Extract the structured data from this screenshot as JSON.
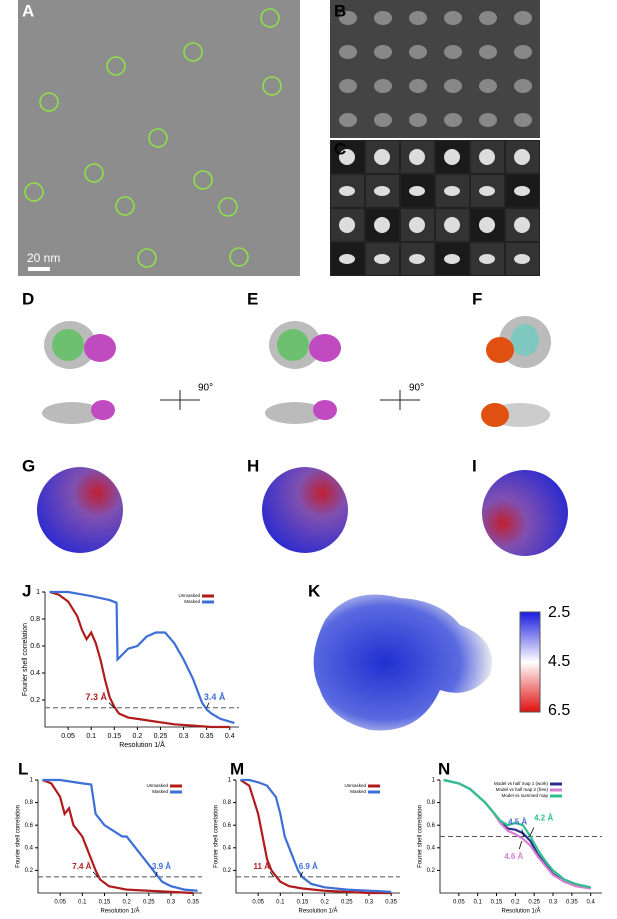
{
  "panel_labels": [
    "A",
    "B",
    "C",
    "D",
    "E",
    "F",
    "G",
    "H",
    "I",
    "J",
    "K",
    "L",
    "M",
    "N"
  ],
  "scale_bar": "20 nm",
  "rotation_labels": [
    "90°",
    "90°"
  ],
  "colorbar_labels": [
    "2.5",
    "4.5",
    "6.5"
  ],
  "chart_data": [
    {
      "type": "line",
      "xlabel": "Resolution 1/Å",
      "ylabel": "Fourier shell correlation",
      "xlim": [
        0,
        0.42
      ],
      "ylim": [
        0,
        1
      ],
      "xticks": [
        0.05,
        0.1,
        0.15,
        0.2,
        0.25,
        0.3,
        0.35,
        0.4
      ],
      "yticks": [
        0.2,
        0.4,
        0.6,
        0.8,
        1
      ],
      "threshold": 0.143,
      "series": [
        {
          "name": "Unmasked",
          "color": "#b01c1c",
          "x": [
            0.01,
            0.03,
            0.05,
            0.07,
            0.08,
            0.09,
            0.1,
            0.11,
            0.12,
            0.13,
            0.14,
            0.15,
            0.16,
            0.18,
            0.2,
            0.24,
            0.28,
            0.32,
            0.36,
            0.4
          ],
          "values": [
            1,
            0.98,
            0.93,
            0.82,
            0.72,
            0.65,
            0.7,
            0.62,
            0.5,
            0.35,
            0.22,
            0.15,
            0.1,
            0.07,
            0.06,
            0.04,
            0.02,
            0.01,
            0,
            0
          ]
        },
        {
          "name": "Masked",
          "color": "#3d6fd6",
          "x": [
            0.01,
            0.05,
            0.1,
            0.14,
            0.155,
            0.157,
            0.18,
            0.2,
            0.22,
            0.24,
            0.26,
            0.28,
            0.3,
            0.32,
            0.34,
            0.35,
            0.36,
            0.38,
            0.41
          ],
          "values": [
            1,
            1,
            0.97,
            0.94,
            0.92,
            0.5,
            0.58,
            0.6,
            0.67,
            0.7,
            0.7,
            0.62,
            0.5,
            0.36,
            0.18,
            0.13,
            0.1,
            0.06,
            0.03
          ]
        }
      ],
      "annotations": [
        {
          "text": "7.3 Å",
          "x": 0.15,
          "y": 0.143,
          "color": "#b01c1c"
        },
        {
          "text": "3.4 Å",
          "x": 0.35,
          "y": 0.143,
          "color": "#3d6fd6"
        }
      ]
    },
    {
      "type": "line",
      "xlabel": "Resolution 1/Å",
      "ylabel": "Fourier shell correlation",
      "xlim": [
        0,
        0.37
      ],
      "ylim": [
        0,
        1
      ],
      "xticks": [
        0.05,
        0.1,
        0.15,
        0.2,
        0.25,
        0.3,
        0.35
      ],
      "yticks": [
        0.2,
        0.4,
        0.6,
        0.8,
        1
      ],
      "threshold": 0.143,
      "series": [
        {
          "name": "Unmasked",
          "color": "#b01c1c",
          "x": [
            0.01,
            0.03,
            0.05,
            0.06,
            0.07,
            0.08,
            0.09,
            0.1,
            0.11,
            0.12,
            0.13,
            0.14,
            0.16,
            0.2,
            0.25,
            0.3,
            0.35
          ],
          "values": [
            1,
            0.97,
            0.85,
            0.7,
            0.75,
            0.6,
            0.55,
            0.5,
            0.4,
            0.3,
            0.2,
            0.12,
            0.06,
            0.03,
            0.02,
            0.01,
            0
          ]
        },
        {
          "name": "Masked",
          "color": "#3d6fd6",
          "x": [
            0.01,
            0.05,
            0.1,
            0.12,
            0.13,
            0.15,
            0.17,
            0.19,
            0.2,
            0.22,
            0.24,
            0.26,
            0.28,
            0.3,
            0.33,
            0.36
          ],
          "values": [
            1,
            1,
            0.97,
            0.96,
            0.7,
            0.6,
            0.55,
            0.5,
            0.5,
            0.4,
            0.3,
            0.2,
            0.1,
            0.06,
            0.03,
            0.02
          ]
        }
      ],
      "annotations": [
        {
          "text": "7.4 Å",
          "x": 0.135,
          "y": 0.143,
          "color": "#b01c1c"
        },
        {
          "text": "3.9 Å",
          "x": 0.265,
          "y": 0.143,
          "color": "#3d6fd6"
        }
      ]
    },
    {
      "type": "line",
      "xlabel": "Resolution 1/Å",
      "ylabel": "Fourier shell correlation",
      "xlim": [
        0,
        0.37
      ],
      "ylim": [
        0,
        1
      ],
      "xticks": [
        0.05,
        0.1,
        0.15,
        0.2,
        0.25,
        0.3,
        0.35
      ],
      "yticks": [
        0.2,
        0.4,
        0.6,
        0.8,
        1
      ],
      "threshold": 0.143,
      "series": [
        {
          "name": "Unmasked",
          "color": "#b01c1c",
          "x": [
            0.01,
            0.03,
            0.05,
            0.06,
            0.07,
            0.08,
            0.09,
            0.1,
            0.12,
            0.15,
            0.2,
            0.25,
            0.3,
            0.35
          ],
          "values": [
            1,
            0.95,
            0.7,
            0.5,
            0.3,
            0.2,
            0.15,
            0.1,
            0.06,
            0.04,
            0.02,
            0.01,
            0,
            0
          ]
        },
        {
          "name": "Masked",
          "color": "#3d6fd6",
          "x": [
            0.01,
            0.03,
            0.05,
            0.07,
            0.09,
            0.1,
            0.11,
            0.12,
            0.13,
            0.14,
            0.15,
            0.17,
            0.2,
            0.25,
            0.3,
            0.35
          ],
          "values": [
            1,
            1,
            0.98,
            0.95,
            0.85,
            0.7,
            0.5,
            0.4,
            0.3,
            0.2,
            0.14,
            0.08,
            0.05,
            0.03,
            0.02,
            0.01
          ]
        }
      ],
      "annotations": [
        {
          "text": "11 Å",
          "x": 0.085,
          "y": 0.143,
          "color": "#b01c1c"
        },
        {
          "text": "6.9 Å",
          "x": 0.145,
          "y": 0.143,
          "color": "#3d6fd6"
        }
      ]
    },
    {
      "type": "line",
      "xlabel": "Resolution 1/Å",
      "ylabel": "Fourier shell correlation",
      "xlim": [
        0,
        0.43
      ],
      "ylim": [
        0,
        1
      ],
      "xticks": [
        0.05,
        0.1,
        0.15,
        0.2,
        0.25,
        0.3,
        0.35,
        0.4
      ],
      "yticks": [
        0.2,
        0.4,
        0.6,
        0.8,
        1
      ],
      "threshold": 0.5,
      "series": [
        {
          "name": "Model vs half map 1 (work)",
          "color": "#2a2f8f",
          "x": [
            0.01,
            0.05,
            0.08,
            0.1,
            0.12,
            0.14,
            0.16,
            0.18,
            0.2,
            0.22,
            0.24,
            0.26,
            0.28,
            0.3,
            0.33,
            0.36,
            0.4
          ],
          "values": [
            1,
            0.97,
            0.92,
            0.86,
            0.8,
            0.72,
            0.63,
            0.57,
            0.56,
            0.53,
            0.46,
            0.34,
            0.25,
            0.17,
            0.1,
            0.07,
            0.04
          ]
        },
        {
          "name": "Model vs half map 2 (free)",
          "color": "#d67fd0",
          "x": [
            0.01,
            0.05,
            0.08,
            0.1,
            0.12,
            0.14,
            0.16,
            0.18,
            0.2,
            0.22,
            0.24,
            0.26,
            0.28,
            0.3,
            0.33,
            0.36,
            0.4
          ],
          "values": [
            1,
            0.97,
            0.92,
            0.86,
            0.8,
            0.72,
            0.62,
            0.55,
            0.52,
            0.48,
            0.42,
            0.32,
            0.24,
            0.16,
            0.1,
            0.06,
            0.04
          ]
        },
        {
          "name": "Model vs summed map",
          "color": "#2ec08e",
          "x": [
            0.01,
            0.05,
            0.08,
            0.1,
            0.12,
            0.14,
            0.16,
            0.18,
            0.2,
            0.22,
            0.24,
            0.26,
            0.28,
            0.3,
            0.33,
            0.36,
            0.4
          ],
          "values": [
            1,
            0.97,
            0.92,
            0.86,
            0.8,
            0.72,
            0.64,
            0.6,
            0.62,
            0.6,
            0.5,
            0.38,
            0.28,
            0.2,
            0.12,
            0.08,
            0.05
          ]
        }
      ],
      "annotations": [
        {
          "text": "4.5 Å",
          "x": 0.222,
          "y": 0.5,
          "color": "#4a6fd0"
        },
        {
          "text": "4.2 Å",
          "x": 0.238,
          "y": 0.5,
          "color": "#2ec08e"
        },
        {
          "text": "4.6 Å",
          "x": 0.217,
          "y": 0.46,
          "color": "#d67fd0"
        }
      ]
    }
  ]
}
